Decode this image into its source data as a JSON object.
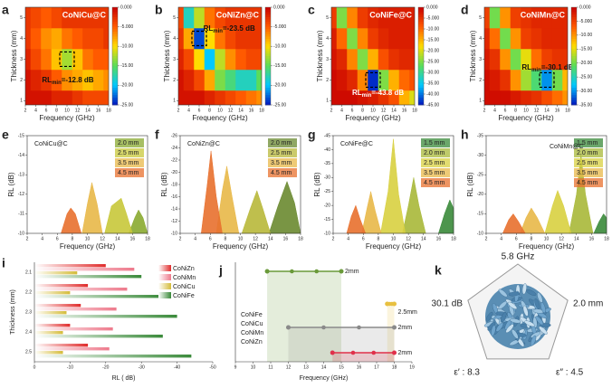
{
  "chart_data": [
    {
      "type": "heatmap",
      "panel": "a",
      "title": "CoNiCu@C",
      "xlabel": "Frequency (GHz)",
      "ylabel": "Thickness (mm)",
      "x": [
        2,
        4,
        6,
        8,
        10,
        12,
        14,
        16,
        18
      ],
      "y": [
        1,
        2,
        3,
        4,
        5
      ],
      "z": [
        [
          -1,
          -1,
          -1,
          -2,
          -2,
          -3,
          -4,
          -4,
          -4
        ],
        [
          -1,
          -2,
          -3,
          -5,
          -7,
          -8,
          -9,
          -8,
          -7
        ],
        [
          -2,
          -4,
          -6,
          -9,
          -12.8,
          -9,
          -6,
          -5,
          -5
        ],
        [
          -3,
          -5,
          -7,
          -8,
          -6,
          -5,
          -4,
          -4,
          -3
        ],
        [
          -3,
          -4,
          -5,
          -4,
          -3,
          -3,
          -3,
          -3,
          -3
        ]
      ],
      "xlim": [
        2,
        18
      ],
      "ylim": [
        0.8,
        5.5
      ],
      "xticks": [
        2,
        4,
        6,
        8,
        10,
        12,
        14,
        16,
        18
      ],
      "yticks": [
        1,
        2,
        3,
        4,
        5
      ],
      "zlim": [
        0,
        -25
      ],
      "zticks": [
        {
          "value": 0,
          "label": "0.000"
        },
        {
          "value": -5,
          "label": "-5.000"
        },
        {
          "value": -10,
          "label": "-10.00"
        },
        {
          "value": -15,
          "label": "-15.00"
        },
        {
          "value": -20,
          "label": "-20.00"
        },
        {
          "value": -25,
          "label": "-25.00"
        }
      ],
      "annotation": [
        "RL",
        "min",
        "=-12.8 dB"
      ]
    },
    {
      "type": "heatmap",
      "panel": "b",
      "title": "CoNiZn@C",
      "xlabel": "Frequency (GHz)",
      "ylabel": "Thickness (mm)",
      "x": [
        2,
        4,
        6,
        8,
        10,
        12,
        14,
        16,
        18
      ],
      "y": [
        1,
        2,
        3,
        4,
        5
      ],
      "z": [
        [
          -1,
          -1,
          -1,
          -2,
          -3,
          -4,
          -5,
          -6,
          -7
        ],
        [
          -1,
          -2,
          -4,
          -8,
          -14,
          -16,
          -18,
          -18,
          -15
        ],
        [
          -2,
          -4,
          -10,
          -20,
          -12,
          -7,
          -5,
          -4,
          -4
        ],
        [
          -3,
          -8,
          -23.5,
          -10,
          -6,
          -4,
          -3,
          -3,
          -3
        ],
        [
          -4,
          -18,
          -12,
          -6,
          -4,
          -3,
          -3,
          -3,
          -3
        ]
      ],
      "xlim": [
        2,
        18
      ],
      "ylim": [
        0.8,
        5.5
      ],
      "xticks": [
        2,
        4,
        6,
        8,
        10,
        12,
        14,
        16,
        18
      ],
      "yticks": [
        1,
        2,
        3,
        4,
        5
      ],
      "zlim": [
        0,
        -25
      ],
      "zticks": [
        {
          "value": 0,
          "label": "0.000"
        },
        {
          "value": -5,
          "label": "-5.000"
        },
        {
          "value": -10,
          "label": "-10.00"
        },
        {
          "value": -15,
          "label": "-15.00"
        },
        {
          "value": -20,
          "label": "-20.00"
        },
        {
          "value": -25,
          "label": "-25.00"
        }
      ],
      "annotation": [
        "RL",
        "min",
        "=-23.5 dB"
      ]
    },
    {
      "type": "heatmap",
      "panel": "c",
      "title": "CoNiFe@C",
      "xlabel": "Frequency (GHz)",
      "ylabel": "Thickness (mm)",
      "x": [
        2,
        4,
        6,
        8,
        10,
        12,
        14,
        16,
        18
      ],
      "y": [
        1,
        2,
        3,
        4,
        5
      ],
      "z": [
        [
          -1,
          -1,
          -1,
          -2,
          -3,
          -5,
          -8,
          -15,
          -20
        ],
        [
          -1,
          -2,
          -4,
          -12,
          -43.8,
          -25,
          -15,
          -10,
          -8
        ],
        [
          -2,
          -4,
          -12,
          -25,
          -15,
          -8,
          -5,
          -4,
          -4
        ],
        [
          -3,
          -10,
          -25,
          -12,
          -6,
          -4,
          -3,
          -3,
          -3
        ],
        [
          -6,
          -25,
          -12,
          -6,
          -4,
          -3,
          -3,
          -3,
          -3
        ]
      ],
      "xlim": [
        2,
        18
      ],
      "ylim": [
        0.8,
        5.5
      ],
      "xticks": [
        2,
        4,
        6,
        8,
        10,
        12,
        14,
        16,
        18
      ],
      "yticks": [
        1,
        2,
        3,
        4,
        5
      ],
      "zlim": [
        0,
        -45
      ],
      "zticks": [
        {
          "value": 0,
          "label": "0.000"
        },
        {
          "value": -5,
          "label": "-5.000"
        },
        {
          "value": -10,
          "label": "-10.00"
        },
        {
          "value": -15,
          "label": "-15.00"
        },
        {
          "value": -20,
          "label": "-20.00"
        },
        {
          "value": -25,
          "label": "-25.00"
        },
        {
          "value": -30,
          "label": "-30.00"
        },
        {
          "value": -35,
          "label": "-35.00"
        },
        {
          "value": -40,
          "label": "-40.00"
        },
        {
          "value": -45,
          "label": "-45.00"
        }
      ],
      "annotation": [
        "RL",
        "min",
        "=-43.8 dB"
      ]
    },
    {
      "type": "heatmap",
      "panel": "d",
      "title": "CoNiMn@C",
      "xlabel": "Frequency (GHz)",
      "ylabel": "Thickness (mm)",
      "x": [
        2,
        4,
        6,
        8,
        10,
        12,
        14,
        16,
        18
      ],
      "y": [
        1,
        2,
        3,
        4,
        5
      ],
      "z": [
        [
          -1,
          -1,
          -1,
          -2,
          -3,
          -4,
          -6,
          -8,
          -10
        ],
        [
          -1,
          -2,
          -4,
          -10,
          -18,
          -22,
          -30.1,
          -20,
          -12
        ],
        [
          -2,
          -4,
          -10,
          -20,
          -15,
          -8,
          -5,
          -4,
          -4
        ],
        [
          -3,
          -8,
          -20,
          -10,
          -5,
          -4,
          -3,
          -3,
          -3
        ],
        [
          -5,
          -20,
          -10,
          -5,
          -4,
          -3,
          -3,
          -3,
          -3
        ]
      ],
      "xlim": [
        2,
        18
      ],
      "ylim": [
        0.8,
        5.5
      ],
      "xticks": [
        2,
        4,
        6,
        8,
        10,
        12,
        14,
        16,
        18
      ],
      "yticks": [
        1,
        2,
        3,
        4,
        5
      ],
      "zlim": [
        0,
        -35
      ],
      "zticks": [
        {
          "value": 0,
          "label": "0.000"
        },
        {
          "value": -5,
          "label": "-5.000"
        },
        {
          "value": -10,
          "label": "-10.00"
        },
        {
          "value": -15,
          "label": "-15.00"
        },
        {
          "value": -20,
          "label": "-20.00"
        },
        {
          "value": -25,
          "label": "-25.00"
        },
        {
          "value": -30,
          "label": "-30.00"
        },
        {
          "value": -35,
          "label": "-35.00"
        }
      ],
      "annotation": [
        "RL",
        "min",
        "=-30.1 dB"
      ]
    },
    {
      "type": "area",
      "panel": "e",
      "title": "CoNiCu@C",
      "xlabel": "Frequency (GHz)",
      "ylabel": "RL (dB)",
      "xlim": [
        2,
        18
      ],
      "ylim": [
        -10,
        -15
      ],
      "xticks": [
        2,
        4,
        6,
        8,
        10,
        12,
        14,
        16,
        18
      ],
      "yticks": [
        -10,
        -11,
        -12,
        -13,
        -14,
        -15
      ],
      "series": [
        {
          "name": "2.0 mm",
          "color": "#8aaa30",
          "x": [
            15.5,
            16.3,
            16.8,
            17.4,
            18
          ],
          "values": [
            -10,
            -10.8,
            -11.2,
            -10.8,
            -10
          ]
        },
        {
          "name": "2.5 mm",
          "color": "#c8c83a",
          "x": [
            12.3,
            13.2,
            14.5,
            15.2,
            16
          ],
          "values": [
            -10,
            -11.4,
            -11.8,
            -11,
            -10
          ]
        },
        {
          "name": "3.5 mm",
          "color": "#e8b848",
          "x": [
            9.3,
            10,
            10.6,
            11.3,
            12
          ],
          "values": [
            -10,
            -11.5,
            -12.6,
            -11.5,
            -10
          ]
        },
        {
          "name": "4.5 mm",
          "color": "#e8702e",
          "x": [
            6.5,
            7.3,
            7.8,
            8.4,
            9.2
          ],
          "values": [
            -10,
            -11,
            -11.3,
            -11,
            -10
          ]
        }
      ]
    },
    {
      "type": "area",
      "panel": "f",
      "title": "CoNiZn@C",
      "xlabel": "Frequency (GHz)",
      "ylabel": "RL (dB)",
      "xlim": [
        2,
        18
      ],
      "ylim": [
        -10,
        -26
      ],
      "xticks": [
        2,
        4,
        6,
        8,
        10,
        12,
        14,
        16,
        18
      ],
      "yticks": [
        -10,
        -12,
        -14,
        -16,
        -18,
        -20,
        -22,
        -24,
        -26
      ],
      "series": [
        {
          "name": "2.0 mm",
          "color": "#6a8a30",
          "x": [
            13.8,
            15,
            16.2,
            17.2,
            18
          ],
          "values": [
            -10,
            -14.5,
            -18.5,
            -15,
            -10
          ]
        },
        {
          "name": "2.5 mm",
          "color": "#b8b83a",
          "x": [
            10.2,
            11.3,
            12.2,
            13,
            14
          ],
          "values": [
            -10,
            -14,
            -17,
            -14,
            -10
          ]
        },
        {
          "name": "3.5 mm",
          "color": "#e8b848",
          "x": [
            6.8,
            7.6,
            8.2,
            8.9,
            9.8
          ],
          "values": [
            -10,
            -17,
            -21,
            -16,
            -10
          ]
        },
        {
          "name": "4.5 mm",
          "color": "#e8702e",
          "x": [
            4.8,
            5.6,
            6.1,
            6.8,
            7.6
          ],
          "values": [
            -10,
            -18,
            -23.5,
            -16,
            -10
          ]
        }
      ]
    },
    {
      "type": "area",
      "panel": "g",
      "title": "CoNiFe@C",
      "xlabel": "Frequency (GHz)",
      "ylabel": "RL (dB)",
      "xlim": [
        2,
        18
      ],
      "ylim": [
        -10,
        -45
      ],
      "xticks": [
        2,
        4,
        6,
        8,
        10,
        12,
        14,
        16,
        18
      ],
      "yticks": [
        -10,
        -15,
        -20,
        -25,
        -30,
        -35,
        -40,
        -45
      ],
      "series": [
        {
          "name": "1.5 mm",
          "color": "#3a8a3a",
          "x": [
            16,
            16.8,
            17.5,
            18,
            18
          ],
          "values": [
            -10,
            -17,
            -22,
            -19,
            -10
          ]
        },
        {
          "name": "2.0 mm",
          "color": "#a8b838",
          "x": [
            11.2,
            12,
            12.7,
            13.4,
            14.3
          ],
          "values": [
            -10,
            -20,
            -30,
            -20,
            -10
          ]
        },
        {
          "name": "2.5 mm",
          "color": "#d8d040",
          "x": [
            8.3,
            9.3,
            10,
            10.7,
            11.6
          ],
          "values": [
            -10,
            -25,
            -43.8,
            -24,
            -10
          ]
        },
        {
          "name": "3.5 mm",
          "color": "#e8b848",
          "x": [
            5.8,
            6.5,
            7,
            7.6,
            8.4
          ],
          "values": [
            -10,
            -19,
            -25,
            -18,
            -10
          ]
        },
        {
          "name": "4.5 mm",
          "color": "#e8702e",
          "x": [
            3.8,
            4.4,
            5,
            5.6,
            6.3
          ],
          "values": [
            -10,
            -16,
            -20,
            -15,
            -10
          ]
        }
      ]
    },
    {
      "type": "area",
      "panel": "h",
      "title": "CoNiMn@C",
      "xlabel": "Frequency (GHz)",
      "ylabel": "RL (dB)",
      "xlim": [
        2,
        18
      ],
      "ylim": [
        -10,
        -35
      ],
      "xticks": [
        2,
        4,
        6,
        8,
        10,
        12,
        14,
        16,
        18
      ],
      "yticks": [
        -10,
        -15,
        -20,
        -25,
        -30,
        -35
      ],
      "series": [
        {
          "name": "1.5 mm",
          "color": "#3a8a3a",
          "x": [
            16.3,
            17,
            17.6,
            18,
            18
          ],
          "values": [
            -10,
            -13,
            -15,
            -14,
            -10
          ]
        },
        {
          "name": "2.0 mm",
          "color": "#a8b838",
          "x": [
            13,
            14,
            14.6,
            15.2,
            16.2
          ],
          "values": [
            -10,
            -20,
            -30.1,
            -20,
            -10
          ]
        },
        {
          "name": "2.5 mm",
          "color": "#d8d040",
          "x": [
            9.8,
            10.8,
            11.5,
            12.3,
            13.3
          ],
          "values": [
            -10,
            -17,
            -21,
            -17,
            -10
          ]
        },
        {
          "name": "3.5 mm",
          "color": "#e8b848",
          "x": [
            6.5,
            7.3,
            8,
            8.8,
            9.8
          ],
          "values": [
            -10,
            -14,
            -16.5,
            -14,
            -10
          ]
        },
        {
          "name": "4.5 mm",
          "color": "#e8702e",
          "x": [
            4.2,
            5,
            5.6,
            6.3,
            7.2
          ],
          "values": [
            -10,
            -13.5,
            -15,
            -13,
            -10
          ]
        }
      ]
    },
    {
      "type": "hbar",
      "panel": "i",
      "xlabel": "RL ( dB)",
      "ylabel": "Thickness (mm)",
      "categories": [
        "2.1",
        "2.2",
        "2.3",
        "2.4",
        "2.5"
      ],
      "xlim": [
        0,
        -50
      ],
      "xticks": [
        0,
        -10,
        -20,
        -30,
        -40,
        -50
      ],
      "series": [
        {
          "name": "CoNiZn",
          "color": "#e02c2c",
          "values": [
            -20,
            -15,
            -13,
            -10,
            -15
          ]
        },
        {
          "name": "CoNiMn",
          "color": "#ee7a8c",
          "values": [
            -28,
            -26,
            -23,
            -22,
            -21
          ]
        },
        {
          "name": "CoNiCu",
          "color": "#d4bc3a",
          "values": [
            -12,
            -10,
            -9,
            -8,
            -8
          ]
        },
        {
          "name": "CoNiFe",
          "color": "#3a8a3a",
          "values": [
            -30,
            -36,
            -40,
            -36,
            -44
          ]
        }
      ]
    },
    {
      "type": "range",
      "panel": "j",
      "xlabel": "Frequency (GHz)",
      "xlim": [
        9,
        19
      ],
      "xticks": [
        9,
        10,
        11,
        12,
        13,
        14,
        15,
        16,
        17,
        18,
        19
      ],
      "series": [
        {
          "name": "CoNiFe",
          "color": "#6a9a3a",
          "values": [
            10.8,
            15
          ],
          "label": "2mm"
        },
        {
          "name": "CoNiCu",
          "color": "#e8c040",
          "values": [
            17.6,
            18
          ],
          "label": "2.5mm"
        },
        {
          "name": "CoNiMn",
          "color": "#8a8a8a",
          "values": [
            12,
            18
          ],
          "label": "2mm"
        },
        {
          "name": "CoNiZn",
          "color": "#e0304a",
          "values": [
            14.5,
            18
          ],
          "label": "2mm"
        }
      ]
    }
  ],
  "panel_k": {
    "panel": "k",
    "labels": [
      "5.8 GHz",
      "2.0 mm",
      "ε″ : 4.5",
      "ε′ : 8.3",
      "30.1 dB"
    ]
  }
}
